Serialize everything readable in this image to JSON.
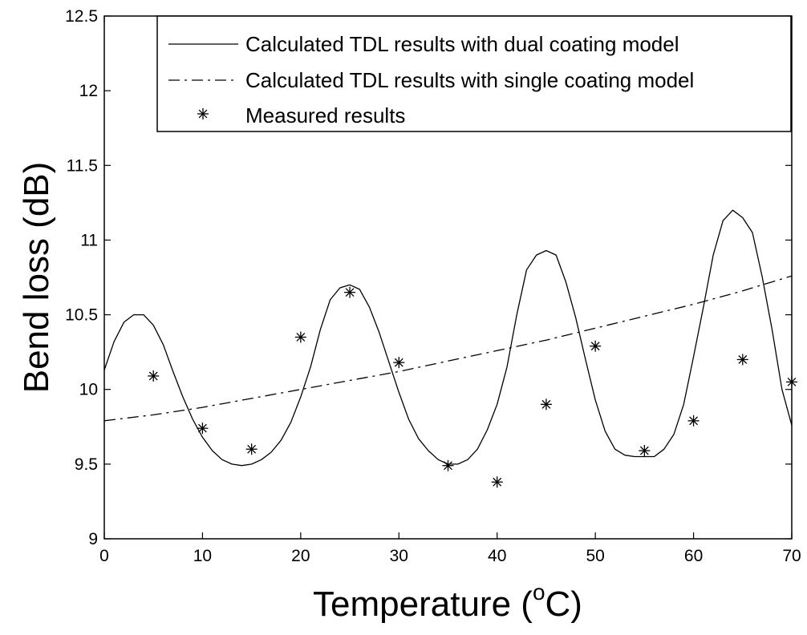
{
  "chart_data": {
    "type": "line",
    "xlabel": "Temperature (",
    "xlabel_sup": "o",
    "xlabel_suffix": "C)",
    "ylabel": "Bend loss (dB)",
    "xlim": [
      0,
      70
    ],
    "ylim": [
      9,
      12.5
    ],
    "xticks": [
      "0",
      "10",
      "20",
      "30",
      "40",
      "50",
      "60",
      "70"
    ],
    "yticks": [
      "9",
      "9.5",
      "10",
      "10.5",
      "11",
      "11.5",
      "12",
      "12.5"
    ],
    "grid": false,
    "legend_position": "top-right",
    "series": [
      {
        "name": "Calculated TDL results with dual coating model",
        "style": "solid",
        "x": [
          0,
          1,
          2,
          3,
          4,
          5,
          6,
          7,
          8,
          9,
          10,
          11,
          12,
          13,
          14,
          15,
          16,
          17,
          18,
          19,
          20,
          21,
          22,
          23,
          24,
          25,
          26,
          27,
          28,
          29,
          30,
          31,
          32,
          33,
          34,
          35,
          36,
          37,
          38,
          39,
          40,
          41,
          42,
          43,
          44,
          45,
          46,
          47,
          48,
          49,
          50,
          51,
          52,
          53,
          54,
          55,
          56,
          57,
          58,
          59,
          60,
          61,
          62,
          63,
          64,
          65,
          66,
          67,
          68,
          69,
          70
        ],
        "y": [
          10.13,
          10.32,
          10.45,
          10.5,
          10.5,
          10.43,
          10.3,
          10.12,
          9.95,
          9.8,
          9.68,
          9.59,
          9.53,
          9.5,
          9.49,
          9.5,
          9.53,
          9.58,
          9.66,
          9.78,
          9.95,
          10.15,
          10.4,
          10.6,
          10.68,
          10.7,
          10.67,
          10.55,
          10.38,
          10.18,
          9.98,
          9.8,
          9.67,
          9.59,
          9.53,
          9.5,
          9.5,
          9.53,
          9.6,
          9.73,
          9.9,
          10.15,
          10.5,
          10.8,
          10.9,
          10.93,
          10.9,
          10.72,
          10.48,
          10.2,
          9.93,
          9.72,
          9.6,
          9.56,
          9.55,
          9.55,
          9.55,
          9.6,
          9.7,
          9.9,
          10.22,
          10.55,
          10.9,
          11.13,
          11.2,
          11.15,
          11.05,
          10.75,
          10.4,
          10.0,
          9.76
        ]
      },
      {
        "name": "Calculated TDL results with single coating model",
        "style": "dash-dot",
        "x": [
          0,
          5,
          10,
          15,
          20,
          25,
          30,
          35,
          40,
          45,
          50,
          55,
          60,
          65,
          70
        ],
        "y": [
          9.79,
          9.83,
          9.88,
          9.94,
          10.0,
          10.06,
          10.12,
          10.19,
          10.26,
          10.33,
          10.41,
          10.49,
          10.57,
          10.66,
          10.76
        ]
      },
      {
        "name": "Measured results",
        "style": "marker-asterisk",
        "x": [
          5,
          10,
          15,
          20,
          25,
          30,
          35,
          40,
          45,
          50,
          55,
          60,
          65,
          70
        ],
        "y": [
          10.09,
          9.74,
          9.6,
          10.35,
          10.65,
          10.18,
          9.49,
          9.38,
          9.9,
          10.29,
          9.59,
          9.79,
          10.2,
          10.05
        ]
      }
    ]
  }
}
